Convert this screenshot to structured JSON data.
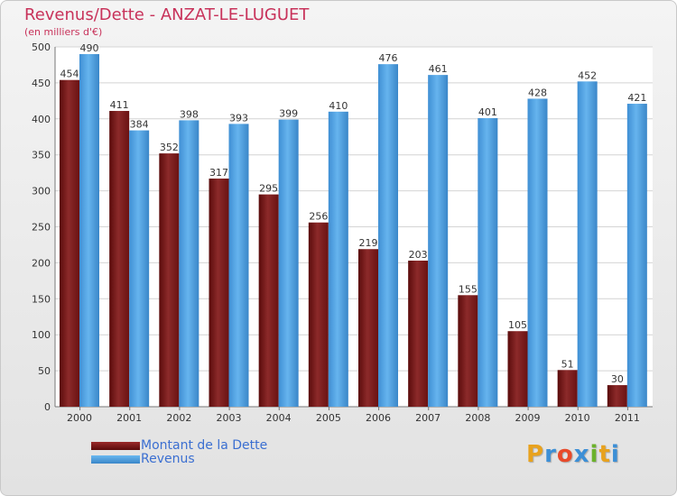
{
  "chart_data": {
    "type": "bar",
    "title": "Revenus/Dette - ANZAT-LE-LUGUET",
    "subtitle": "(en milliers d'€)",
    "categories": [
      "2000",
      "2001",
      "2002",
      "2003",
      "2004",
      "2005",
      "2006",
      "2007",
      "2008",
      "2009",
      "2010",
      "2011"
    ],
    "series": [
      {
        "name": "Montant de la Dette",
        "color": "#7a1515",
        "values": [
          454,
          411,
          352,
          317,
          295,
          256,
          219,
          203,
          155,
          105,
          51,
          30
        ]
      },
      {
        "name": "Revenus",
        "color": "#4a9ee0",
        "values": [
          490,
          384,
          398,
          393,
          399,
          410,
          476,
          461,
          401,
          428,
          452,
          421
        ]
      }
    ],
    "ylim": [
      0,
      500
    ],
    "yticks": [
      0,
      50,
      100,
      150,
      200,
      250,
      300,
      350,
      400,
      450,
      500
    ],
    "grid": true,
    "legend_position": "bottom-left",
    "colors": {
      "title": "#c8325a",
      "legend_text": "#3b6fd1"
    }
  },
  "logo": {
    "text": "Proxiti",
    "letters": [
      "P",
      "r",
      "o",
      "x",
      "i",
      "t",
      "i"
    ],
    "colors": [
      "#e8a21e",
      "#3c8fd6",
      "#e84a2a",
      "#3c8fd6",
      "#6bb22a",
      "#e8a21e",
      "#3c8fd6"
    ]
  }
}
